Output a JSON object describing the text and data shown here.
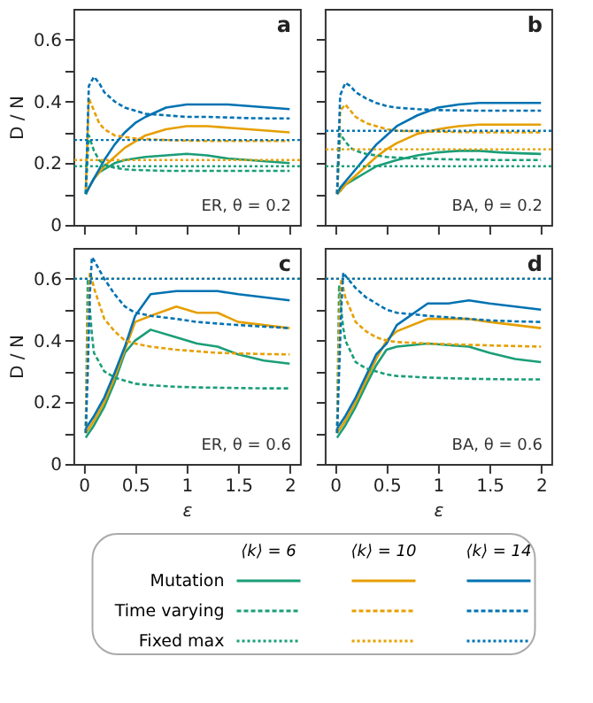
{
  "chart_data": [
    {
      "type": "line",
      "ylabel": "D / N",
      "annotations": [
        "a",
        "ER, θ = 0.2"
      ],
      "xlim": [
        -0.1,
        2.1
      ],
      "ylim": [
        0,
        0.7
      ],
      "xticks": [
        0,
        0.5,
        1,
        1.5,
        2
      ],
      "yticks": [
        0,
        {
          "value": 0.1,
          "label": null
        },
        0.2,
        {
          "value": 0.3,
          "label": null
        },
        0.4,
        {
          "value": 0.5,
          "label": null
        },
        0.6
      ],
      "tick_labels": "y",
      "grid": false,
      "x": [
        0.02,
        0.05,
        0.1,
        0.15,
        0.2,
        0.3,
        0.4,
        0.5,
        0.6,
        0.8,
        1.0,
        1.2,
        1.4,
        1.6,
        1.8,
        2.0
      ],
      "series": [
        {
          "color": "#1a9e77",
          "line_style": "solid",
          "values": [
            0.1,
            0.12,
            0.15,
            0.17,
            0.18,
            0.2,
            0.21,
            0.215,
            0.22,
            0.225,
            0.23,
            0.225,
            0.215,
            0.21,
            0.205,
            0.2
          ]
        },
        {
          "color": "#e69f00",
          "line_style": "solid",
          "values": [
            0.1,
            0.12,
            0.15,
            0.17,
            0.19,
            0.22,
            0.25,
            0.27,
            0.29,
            0.31,
            0.32,
            0.32,
            0.315,
            0.31,
            0.305,
            0.3
          ]
        },
        {
          "color": "#0072b2",
          "line_style": "solid",
          "values": [
            0.1,
            0.12,
            0.15,
            0.18,
            0.21,
            0.26,
            0.3,
            0.33,
            0.35,
            0.38,
            0.39,
            0.39,
            0.39,
            0.385,
            0.38,
            0.375
          ]
        },
        {
          "color": "#1a9e77",
          "line_style": "dashed",
          "values": [
            0.1,
            0.29,
            0.24,
            0.21,
            0.195,
            0.185,
            0.18,
            0.178,
            0.177,
            0.175,
            0.175,
            0.175,
            0.175,
            0.175,
            0.175,
            0.175
          ]
        },
        {
          "color": "#e69f00",
          "line_style": "dashed",
          "values": [
            0.115,
            0.41,
            0.37,
            0.33,
            0.31,
            0.29,
            0.285,
            0.28,
            0.278,
            0.275,
            0.273,
            0.272,
            0.272,
            0.272,
            0.272,
            0.272
          ]
        },
        {
          "color": "#0072b2",
          "line_style": "dashed",
          "values": [
            0.1,
            0.45,
            0.48,
            0.46,
            0.43,
            0.4,
            0.38,
            0.37,
            0.36,
            0.355,
            0.35,
            0.35,
            0.348,
            0.346,
            0.345,
            0.345
          ]
        }
      ],
      "ref_lines": [
        {
          "axis": "y",
          "value": 0.19,
          "color": "#1a9e77",
          "line_style": "dotted"
        },
        {
          "axis": "y",
          "value": 0.21,
          "color": "#e69f00",
          "line_style": "dotted"
        },
        {
          "axis": "y",
          "value": 0.275,
          "color": "#0072b2",
          "line_style": "dotted"
        }
      ]
    },
    {
      "type": "line",
      "annotations": [
        "b",
        "BA, θ = 0.2"
      ],
      "xlim": [
        -0.1,
        2.1
      ],
      "ylim": [
        0,
        0.7
      ],
      "xticks": [
        0,
        0.5,
        1,
        1.5,
        2
      ],
      "yticks": [
        0,
        {
          "value": 0.1,
          "label": null
        },
        0.2,
        {
          "value": 0.3,
          "label": null
        },
        0.4,
        {
          "value": 0.5,
          "label": null
        },
        0.6
      ],
      "tick_labels": false,
      "grid": false,
      "x": [
        0.02,
        0.05,
        0.1,
        0.15,
        0.2,
        0.3,
        0.4,
        0.5,
        0.6,
        0.8,
        1.0,
        1.2,
        1.4,
        1.6,
        1.8,
        2.0
      ],
      "series": [
        {
          "color": "#1a9e77",
          "line_style": "solid",
          "values": [
            0.1,
            0.11,
            0.13,
            0.14,
            0.15,
            0.17,
            0.19,
            0.2,
            0.21,
            0.225,
            0.235,
            0.24,
            0.24,
            0.235,
            0.232,
            0.23
          ]
        },
        {
          "color": "#e69f00",
          "line_style": "solid",
          "values": [
            0.1,
            0.11,
            0.13,
            0.145,
            0.16,
            0.19,
            0.22,
            0.245,
            0.265,
            0.295,
            0.31,
            0.32,
            0.325,
            0.325,
            0.325,
            0.325
          ]
        },
        {
          "color": "#0072b2",
          "line_style": "solid",
          "values": [
            0.1,
            0.12,
            0.14,
            0.16,
            0.18,
            0.22,
            0.26,
            0.29,
            0.32,
            0.355,
            0.38,
            0.39,
            0.395,
            0.395,
            0.395,
            0.395
          ]
        },
        {
          "color": "#1a9e77",
          "line_style": "dashed",
          "values": [
            0.1,
            0.295,
            0.27,
            0.25,
            0.24,
            0.23,
            0.225,
            0.22,
            0.218,
            0.215,
            0.213,
            0.212,
            0.211,
            0.21,
            0.21,
            0.21
          ]
        },
        {
          "color": "#e69f00",
          "line_style": "dashed",
          "values": [
            0.1,
            0.37,
            0.39,
            0.37,
            0.35,
            0.33,
            0.32,
            0.31,
            0.305,
            0.303,
            0.302,
            0.301,
            0.3,
            0.3,
            0.3,
            0.3
          ]
        },
        {
          "color": "#0072b2",
          "line_style": "dashed",
          "values": [
            0.1,
            0.42,
            0.46,
            0.45,
            0.43,
            0.41,
            0.395,
            0.385,
            0.38,
            0.375,
            0.372,
            0.371,
            0.37,
            0.37,
            0.37,
            0.37
          ]
        }
      ],
      "ref_lines": [
        {
          "axis": "y",
          "value": 0.19,
          "color": "#1a9e77",
          "line_style": "dotted"
        },
        {
          "axis": "y",
          "value": 0.245,
          "color": "#e69f00",
          "line_style": "dotted"
        },
        {
          "axis": "y",
          "value": 0.305,
          "color": "#0072b2",
          "line_style": "dotted"
        }
      ]
    },
    {
      "type": "line",
      "ylabel": "D / N",
      "xlabel": "ε",
      "annotations": [
        "c",
        "ER, θ = 0.6"
      ],
      "xlim": [
        -0.1,
        2.1
      ],
      "ylim": [
        0,
        0.7
      ],
      "xticks": [
        0,
        0.5,
        1,
        1.5,
        2
      ],
      "yticks": [
        0,
        {
          "value": 0.1,
          "label": null
        },
        0.2,
        {
          "value": 0.3,
          "label": null
        },
        0.4,
        {
          "value": 0.5,
          "label": null
        },
        0.6
      ],
      "grid": false,
      "x": [
        0.02,
        0.04,
        0.06,
        0.08,
        0.1,
        0.2,
        0.3,
        0.4,
        0.5,
        0.65,
        0.9,
        1.1,
        1.3,
        1.5,
        1.75,
        2.0
      ],
      "series": [
        {
          "color": "#1a9e77",
          "line_style": "solid",
          "values": [
            0.085,
            0.095,
            0.105,
            0.115,
            0.125,
            0.185,
            0.265,
            0.36,
            0.4,
            0.435,
            0.41,
            0.39,
            0.38,
            0.355,
            0.335,
            0.325
          ]
        },
        {
          "color": "#e69f00",
          "line_style": "solid",
          "values": [
            0.1,
            0.11,
            0.12,
            0.13,
            0.14,
            0.2,
            0.28,
            0.37,
            0.46,
            0.48,
            0.51,
            0.49,
            0.49,
            0.46,
            0.45,
            0.44
          ]
        },
        {
          "color": "#0072b2",
          "line_style": "solid",
          "values": [
            0.115,
            0.125,
            0.135,
            0.145,
            0.155,
            0.215,
            0.295,
            0.38,
            0.48,
            0.55,
            0.56,
            0.56,
            0.56,
            0.55,
            0.54,
            0.53
          ]
        },
        {
          "color": "#1a9e77",
          "line_style": "dashed",
          "values": [
            0.1,
            0.6,
            0.5,
            0.42,
            0.36,
            0.3,
            0.28,
            0.27,
            0.26,
            0.255,
            0.25,
            0.248,
            0.247,
            0.246,
            0.245,
            0.245
          ]
        },
        {
          "color": "#e69f00",
          "line_style": "dashed",
          "values": [
            0.1,
            0.45,
            0.62,
            0.6,
            0.57,
            0.47,
            0.43,
            0.4,
            0.39,
            0.38,
            0.37,
            0.365,
            0.36,
            0.358,
            0.356,
            0.355
          ]
        },
        {
          "color": "#0072b2",
          "line_style": "dashed",
          "values": [
            0.1,
            0.3,
            0.55,
            0.67,
            0.66,
            0.6,
            0.55,
            0.51,
            0.49,
            0.48,
            0.47,
            0.46,
            0.455,
            0.45,
            0.445,
            0.44
          ]
        }
      ],
      "ref_lines": [
        {
          "axis": "y",
          "value": 0.6,
          "color": "#1a9e77",
          "line_style": "dotted"
        },
        {
          "axis": "y",
          "value": 0.6,
          "color": "#e69f00",
          "line_style": "dotted"
        },
        {
          "axis": "y",
          "value": 0.6,
          "color": "#0072b2",
          "line_style": "dotted"
        }
      ]
    },
    {
      "type": "line",
      "xlabel": "ε",
      "annotations": [
        "d",
        "BA, θ = 0.6"
      ],
      "xlim": [
        -0.1,
        2.1
      ],
      "ylim": [
        0,
        0.7
      ],
      "xticks": [
        0,
        0.5,
        1,
        1.5,
        2
      ],
      "yticks": [
        0,
        {
          "value": 0.1,
          "label": null
        },
        0.2,
        {
          "value": 0.3,
          "label": null
        },
        0.4,
        {
          "value": 0.5,
          "label": null
        },
        0.6
      ],
      "tick_labels": "x",
      "grid": false,
      "x": [
        0.02,
        0.04,
        0.06,
        0.08,
        0.1,
        0.2,
        0.3,
        0.4,
        0.5,
        0.6,
        0.9,
        1.1,
        1.3,
        1.5,
        1.75,
        2.0
      ],
      "series": [
        {
          "color": "#1a9e77",
          "line_style": "solid",
          "values": [
            0.085,
            0.095,
            0.105,
            0.115,
            0.125,
            0.185,
            0.255,
            0.32,
            0.37,
            0.38,
            0.39,
            0.385,
            0.38,
            0.36,
            0.34,
            0.33
          ]
        },
        {
          "color": "#e69f00",
          "line_style": "solid",
          "values": [
            0.1,
            0.11,
            0.12,
            0.13,
            0.14,
            0.2,
            0.27,
            0.34,
            0.4,
            0.43,
            0.47,
            0.47,
            0.47,
            0.46,
            0.45,
            0.44
          ]
        },
        {
          "color": "#0072b2",
          "line_style": "solid",
          "values": [
            0.115,
            0.125,
            0.135,
            0.145,
            0.155,
            0.215,
            0.285,
            0.355,
            0.39,
            0.45,
            0.52,
            0.52,
            0.53,
            0.52,
            0.51,
            0.5
          ]
        },
        {
          "color": "#1a9e77",
          "line_style": "dashed",
          "values": [
            0.1,
            0.58,
            0.5,
            0.44,
            0.4,
            0.33,
            0.31,
            0.3,
            0.29,
            0.285,
            0.28,
            0.278,
            0.276,
            0.275,
            0.274,
            0.274
          ]
        },
        {
          "color": "#e69f00",
          "line_style": "dashed",
          "values": [
            0.1,
            0.45,
            0.6,
            0.57,
            0.54,
            0.46,
            0.43,
            0.41,
            0.4,
            0.395,
            0.39,
            0.388,
            0.386,
            0.384,
            0.382,
            0.38
          ]
        },
        {
          "color": "#0072b2",
          "line_style": "dashed",
          "values": [
            0.1,
            0.3,
            0.5,
            0.62,
            0.61,
            0.57,
            0.54,
            0.52,
            0.5,
            0.49,
            0.48,
            0.475,
            0.47,
            0.465,
            0.462,
            0.46
          ]
        }
      ],
      "ref_lines": [
        {
          "axis": "y",
          "value": 0.6,
          "color": "#1a9e77",
          "line_style": "dotted"
        },
        {
          "axis": "y",
          "value": 0.6,
          "color": "#e69f00",
          "line_style": "dotted"
        },
        {
          "axis": "y",
          "value": 0.6,
          "color": "#0072b2",
          "line_style": "dotted"
        }
      ]
    },
    {
      "type": "other",
      "categories": [
        "⟨k⟩ = 6",
        "⟨k⟩ = 10",
        "⟨k⟩ = 14"
      ],
      "y_categories": [
        "Mutation",
        "Time varying",
        "Fixed max"
      ],
      "colors": [
        "#1a9e77",
        "#e69f00",
        "#0072b2"
      ],
      "series": [
        {
          "line_style": "solid",
          "values": [
            null,
            null,
            null
          ]
        },
        {
          "line_style": "dashed",
          "values": [
            null,
            null,
            null
          ]
        },
        {
          "line_style": "dotted",
          "values": [
            null,
            null,
            null
          ]
        }
      ]
    }
  ]
}
